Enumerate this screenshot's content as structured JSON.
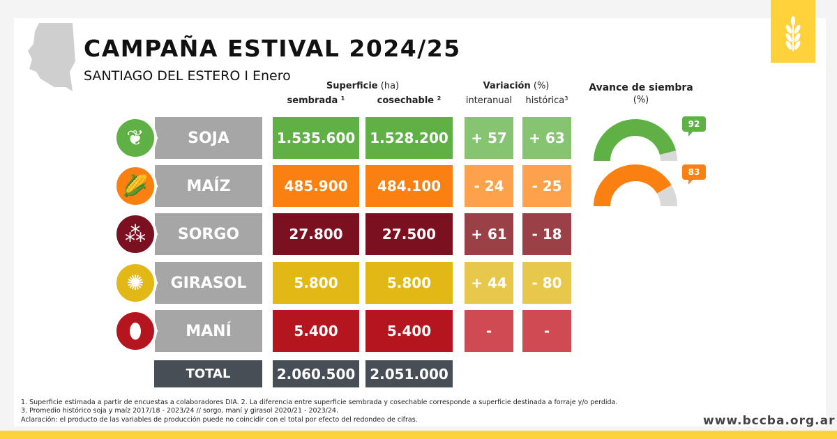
{
  "title": "CAMPAÑA ESTIVAL 2024/25",
  "subtitle": "SANTIAGO DEL ESTERO I Enero",
  "headers": {
    "superficie": "Superficie",
    "superficie_unit": "(ha)",
    "sembrada": "sembrada ¹",
    "cosechable": "cosechable ²",
    "variacion": "Variación",
    "variacion_unit": "(%)",
    "interanual": "interanual",
    "historica": "histórica³",
    "avance": "Avance de siembra",
    "avance_unit": "(%)"
  },
  "crops": [
    {
      "name": "SOJA",
      "sembrada": "1.535.600",
      "cosechable": "1.528.200",
      "interanual": "+ 57",
      "historica": "+ 63",
      "color": "#5fb146",
      "varcolor": "#86c472",
      "icon": "soy-plant-icon"
    },
    {
      "name": "MAÍZ",
      "sembrada": "485.900",
      "cosechable": "484.100",
      "interanual": "- 24",
      "historica": "- 25",
      "color": "#fb8012",
      "varcolor": "#fda24a",
      "icon": "corn-icon"
    },
    {
      "name": "SORGO",
      "sembrada": "27.800",
      "cosechable": "27.500",
      "interanual": "+ 61",
      "historica": "- 18",
      "color": "#7b1020",
      "varcolor": "#9b4047",
      "icon": "sorghum-icon"
    },
    {
      "name": "GIRASOL",
      "sembrada": "5.800",
      "cosechable": "5.800",
      "interanual": "+ 44",
      "historica": "- 80",
      "color": "#e1b816",
      "varcolor": "#e8c84a",
      "icon": "sunflower-icon"
    },
    {
      "name": "MANÍ",
      "sembrada": "5.400",
      "cosechable": "5.400",
      "interanual": "-",
      "historica": "-",
      "color": "#b5151f",
      "varcolor": "#cf4a52",
      "icon": "peanut-icon"
    }
  ],
  "total": {
    "label": "TOTAL",
    "sembrada": "2.060.500",
    "cosechable": "2.051.000"
  },
  "avance": [
    {
      "crop": "SOJA",
      "value": 92,
      "label": "92",
      "color": "#5fb146"
    },
    {
      "crop": "MAÍZ",
      "value": 83,
      "label": "83",
      "color": "#fb8012"
    }
  ],
  "footnotes": [
    "1. Superficie estimada a partir de encuestas a colaboradores DIA. 2. La diferencia entre superficie sembrada y cosechable corresponde a superficie destinada a forraje y/o perdida.",
    "3. Promedio histórico soja y maíz 2017/18 - 2023/24 // sorgo, maní y girasol 2020/21 - 2023/24.",
    "Aclaración: el producto de las variables de producción puede no coincidir con el total por efecto del redondeo de cifras."
  ],
  "website": "www.bccba.org.ar"
}
